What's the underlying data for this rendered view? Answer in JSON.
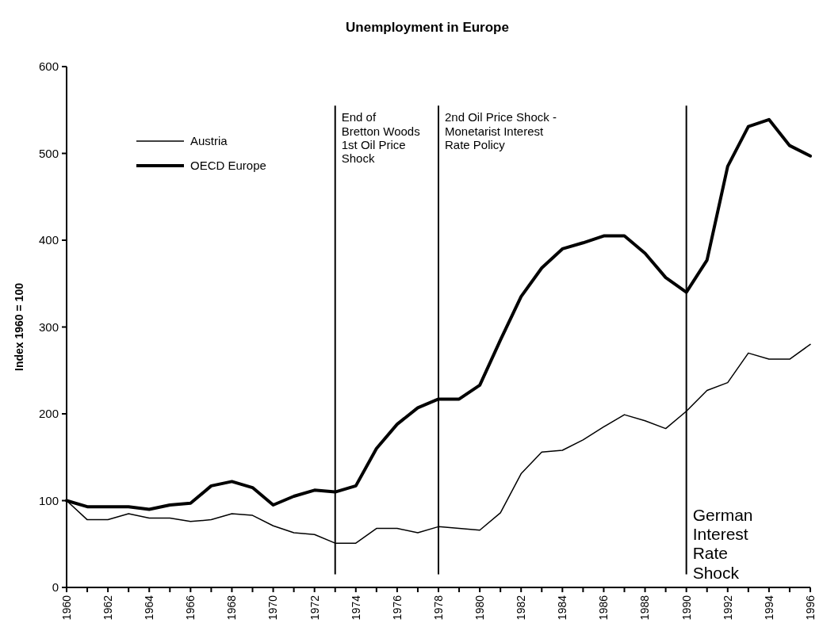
{
  "chart_data": {
    "type": "line",
    "title": "Unemployment in Europe",
    "ylabel": "Index 1960 = 100",
    "x": [
      1960,
      1961,
      1962,
      1963,
      1964,
      1965,
      1966,
      1967,
      1968,
      1969,
      1970,
      1971,
      1972,
      1973,
      1974,
      1975,
      1976,
      1977,
      1978,
      1979,
      1980,
      1981,
      1982,
      1983,
      1984,
      1985,
      1986,
      1987,
      1988,
      1989,
      1990,
      1991,
      1992,
      1993,
      1994,
      1995,
      1996
    ],
    "series": [
      {
        "name": "Austria",
        "color": "#000000",
        "values": [
          100,
          78,
          78,
          85,
          80,
          80,
          76,
          78,
          85,
          83,
          71,
          63,
          61,
          51,
          51,
          68,
          68,
          63,
          70,
          68,
          66,
          86,
          131,
          156,
          158,
          170,
          185,
          199,
          192,
          183,
          203,
          227,
          236,
          270,
          263,
          263,
          280
        ]
      },
      {
        "name": "OECD Europe",
        "color": "#000000",
        "values": [
          100,
          93,
          93,
          93,
          90,
          95,
          97,
          117,
          122,
          115,
          95,
          105,
          112,
          110,
          117,
          160,
          188,
          207,
          217,
          217,
          233,
          285,
          335,
          368,
          390,
          397,
          405,
          405,
          385,
          357,
          340,
          377,
          485,
          531,
          539,
          509,
          497
        ]
      }
    ],
    "xlim": [
      1960,
      1996
    ],
    "xticks": [
      1960,
      {
        "value": 1961,
        "label": null
      },
      1962,
      {
        "value": 1963,
        "label": null
      },
      1964,
      {
        "value": 1965,
        "label": null
      },
      1966,
      {
        "value": 1967,
        "label": null
      },
      1968,
      {
        "value": 1969,
        "label": null
      },
      1970,
      {
        "value": 1971,
        "label": null
      },
      1972,
      {
        "value": 1973,
        "label": null
      },
      1974,
      {
        "value": 1975,
        "label": null
      },
      1976,
      {
        "value": 1977,
        "label": null
      },
      1978,
      {
        "value": 1979,
        "label": null
      },
      1980,
      {
        "value": 1981,
        "label": null
      },
      1982,
      {
        "value": 1983,
        "label": null
      },
      1984,
      {
        "value": 1985,
        "label": null
      },
      1986,
      {
        "value": 1987,
        "label": null
      },
      1988,
      {
        "value": 1989,
        "label": null
      },
      1990,
      {
        "value": 1991,
        "label": null
      },
      1992,
      {
        "value": 1993,
        "label": null
      },
      1994,
      {
        "value": 1995,
        "label": null
      },
      1996
    ],
    "ylim": [
      0,
      600
    ],
    "yticks": [
      0,
      100,
      200,
      300,
      400,
      500,
      600
    ],
    "ref_lines": [
      {
        "axis": "x",
        "value": 1973,
        "label": "End of Bretton Woods 1st Oil Price Shock",
        "color": "#000000"
      },
      {
        "axis": "x",
        "value": 1978,
        "label": "2nd Oil Price Shock - Monetarist Interest Rate Policy",
        "color": "#000000"
      },
      {
        "axis": "x",
        "value": 1990,
        "label": "German Interest Rate Shock",
        "color": "#000000"
      }
    ],
    "grid": false,
    "legend": "top left",
    "line_style": "solid"
  }
}
